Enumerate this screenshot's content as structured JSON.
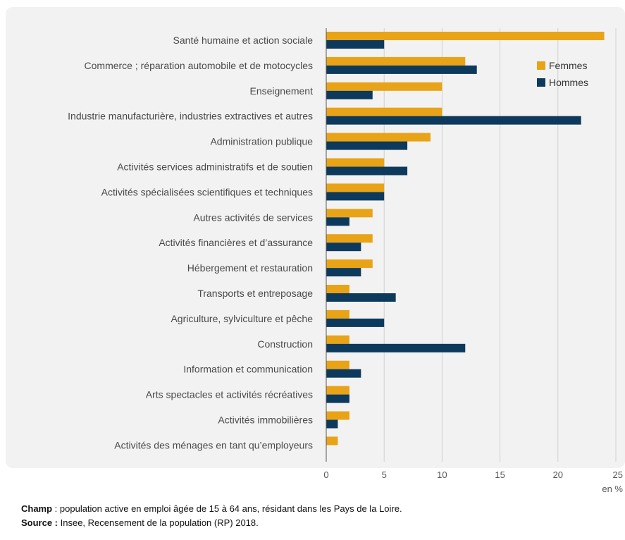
{
  "chart_data": {
    "type": "bar",
    "orientation": "horizontal",
    "categories": [
      "Santé humaine et action sociale",
      "Commerce ; réparation automobile et de motocycles",
      "Enseignement",
      "Industrie manufacturière, industries extractives et autres",
      "Administration publique",
      "Activités services administratifs et de soutien",
      "Activités spécialisées scientifiques et techniques",
      "Autres activités de services",
      "Activités financières et d’assurance",
      "Hébergement et restauration",
      "Transports et entreposage",
      "Agriculture, sylviculture et pêche",
      "Construction",
      "Information et communication",
      "Arts spectacles et activités récréatives",
      "Activités immobilières",
      "Activités des ménages en tant qu’employeurs"
    ],
    "series": [
      {
        "name": "Femmes",
        "color": "#e8a317",
        "values": [
          24,
          12,
          10,
          10,
          9,
          5,
          5,
          4,
          4,
          4,
          2,
          2,
          2,
          2,
          2,
          2,
          1
        ]
      },
      {
        "name": "Hommes",
        "color": "#0d3a5c",
        "values": [
          5,
          13,
          4,
          22,
          7,
          7,
          5,
          2,
          3,
          3,
          6,
          5,
          12,
          3,
          2,
          1,
          0
        ]
      }
    ],
    "xlim": [
      0,
      25
    ],
    "xticks": [
      0,
      5,
      10,
      15,
      20,
      25
    ],
    "xunit": "en %",
    "grid": true,
    "legend": "top-right"
  },
  "notes": {
    "champ_label": "Champ",
    "champ_text": " : population active en emploi âgée de 15 à 64 ans, résidant dans les Pays de la Loire.",
    "source_label": "Source :",
    "source_text": " Insee, Recensement de la population (RP) 2018."
  }
}
